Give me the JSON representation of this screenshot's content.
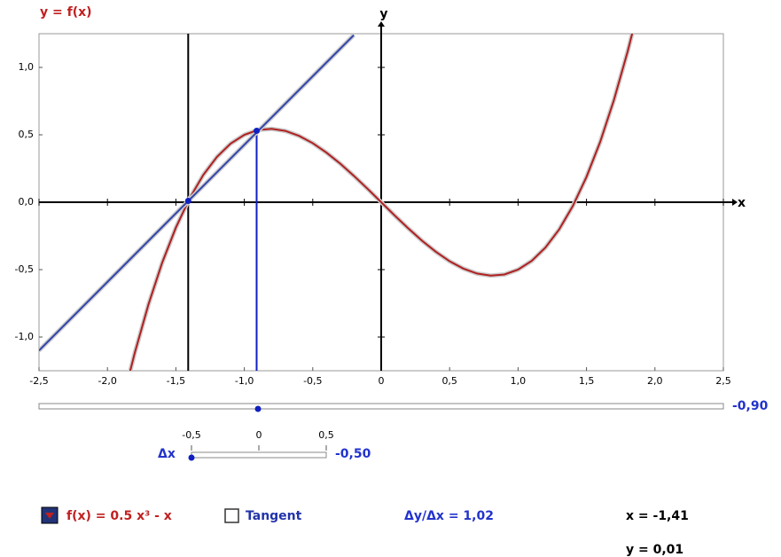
{
  "chart_data": {
    "type": "line",
    "title": "y = f(x)",
    "x_label": "x",
    "y_label": "y",
    "xlim": [
      -2.5,
      2.5
    ],
    "ylim": [
      -1.25,
      1.25
    ],
    "xticks": [
      {
        "value": -2.5,
        "label": "-2,5"
      },
      {
        "value": -2,
        "label": "-2,0"
      },
      {
        "value": -1.5,
        "label": "-1,5"
      },
      {
        "value": -1,
        "label": "-1,0"
      },
      {
        "value": -0.5,
        "label": "-0,5"
      },
      0,
      {
        "value": 0.5,
        "label": "0,5"
      },
      {
        "value": 1,
        "label": "1,0"
      },
      {
        "value": 1.5,
        "label": "1,5"
      },
      {
        "value": 2,
        "label": "2,0"
      },
      {
        "value": 2.5,
        "label": "2,5"
      }
    ],
    "yticks": [
      {
        "value": -1,
        "label": "-1,0"
      },
      {
        "value": -0.5,
        "label": "-0,5"
      },
      {
        "value": 0,
        "label": "0,0"
      },
      {
        "value": 0.5,
        "label": "0,5"
      },
      {
        "value": 1,
        "label": "1,0"
      }
    ],
    "series": [
      {
        "name": "f(x) = 0.5 x³ - x",
        "color": "#b02020",
        "x": [
          -1.85,
          -1.8,
          -1.7,
          -1.6,
          -1.5,
          -1.4,
          -1.3,
          -1.2,
          -1.1,
          -1,
          -0.9,
          -0.8,
          -0.7,
          -0.6,
          -0.5,
          -0.4,
          -0.3,
          -0.2,
          -0.1,
          0,
          0.1,
          0.2,
          0.3,
          0.4,
          0.5,
          0.6,
          0.7,
          0.8,
          0.9,
          1,
          1.1,
          1.2,
          1.3,
          1.4,
          1.5,
          1.6,
          1.7,
          1.8,
          1.85
        ],
        "values": [
          -1.316,
          -1.116,
          -0.757,
          -0.448,
          -0.188,
          0.028,
          0.202,
          0.336,
          0.435,
          0.5,
          0.536,
          0.544,
          0.529,
          0.492,
          0.438,
          0.368,
          0.287,
          0.196,
          0.1,
          0,
          -0.1,
          -0.196,
          -0.287,
          -0.368,
          -0.438,
          -0.492,
          -0.529,
          -0.544,
          -0.536,
          -0.5,
          -0.435,
          -0.336,
          -0.202,
          -0.028,
          0.188,
          0.448,
          0.757,
          1.116,
          1.316
        ]
      },
      {
        "name": "Tangent",
        "color": "#3344aa",
        "x": [
          -2.5,
          -0.2
        ],
        "values": [
          -1.1,
          1.24
        ]
      }
    ],
    "points": {
      "color": "#1020c0",
      "x": [
        -1.41,
        -0.91
      ],
      "values": [
        0.01,
        0.53
      ]
    },
    "x_slider": {
      "value": -0.9,
      "label": "-0,90"
    },
    "dx_slider": {
      "name": "Δx",
      "range": [
        -0.5,
        0.5
      ],
      "ticks": [
        {
          "value": -0.5,
          "label": "-0,5"
        },
        0,
        {
          "value": 0.5,
          "label": "0,5"
        }
      ],
      "value": -0.5,
      "label": "-0,50"
    },
    "slope_label": "Δy/Δx = 1,02",
    "x_readout": "x = -1,41",
    "y_readout": "y = 0,01"
  }
}
